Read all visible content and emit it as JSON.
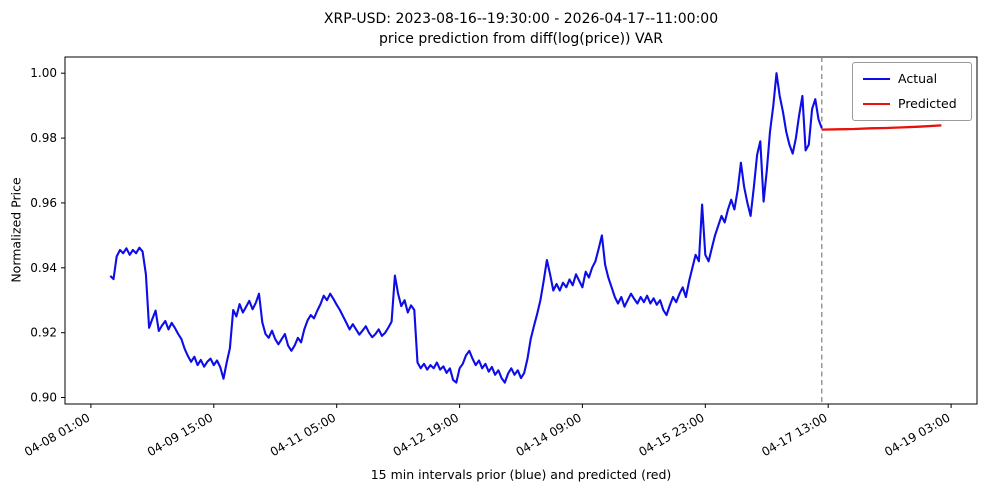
{
  "figure": {
    "title_line1": "XRP-USD: 2023-08-16--19:30:00 - 2026-04-17--11:00:00",
    "title_line2": "price prediction from diff(log(price)) VAR",
    "xlabel": "15 min intervals prior (blue) and predicted (red)",
    "ylabel": "Normalized Price"
  },
  "legend": {
    "items": [
      {
        "label": "Actual",
        "color": "#0d0dе8"
      },
      {
        "label": "Predicted",
        "color": "#e8110b"
      }
    ]
  },
  "colors": {
    "actual": "#0d0de8",
    "predicted": "#e8110b",
    "forecast_divider": "#808080",
    "axis": "#000000"
  },
  "chart_data": {
    "type": "line",
    "title": "XRP-USD: 2023-08-16--19:30:00 - 2026-04-17--11:00:00 / price prediction from diff(log(price)) VAR",
    "xlabel": "15 min intervals prior (blue) and predicted (red)",
    "ylabel": "Normalized Price",
    "grid": false,
    "legend_position": "upper right",
    "x_unit": "hours since 04-08 01:00",
    "xlim": [
      -8,
      274
    ],
    "ylim": [
      0.898,
      1.005
    ],
    "x_ticks": [
      {
        "hour": 0,
        "label": "04-08 01:00"
      },
      {
        "hour": 38,
        "label": "04-09 15:00"
      },
      {
        "hour": 76,
        "label": "04-11 05:00"
      },
      {
        "hour": 114,
        "label": "04-12 19:00"
      },
      {
        "hour": 152,
        "label": "04-14 09:00"
      },
      {
        "hour": 190,
        "label": "04-15 23:00"
      },
      {
        "hour": 228,
        "label": "04-17 13:00"
      },
      {
        "hour": 266,
        "label": "04-19 03:00"
      }
    ],
    "y_ticks": [
      {
        "value": 0.9,
        "label": "0.90"
      },
      {
        "value": 0.92,
        "label": "0.92"
      },
      {
        "value": 0.94,
        "label": "0.94"
      },
      {
        "value": 0.96,
        "label": "0.96"
      },
      {
        "value": 0.98,
        "label": "0.98"
      },
      {
        "value": 1.0,
        "label": "1.00"
      }
    ],
    "forecast_boundary_hour": 226,
    "series": [
      {
        "name": "Actual",
        "color": "#0d0de8",
        "start_hour": 6,
        "step_hours": 1,
        "values": [
          0.9375,
          0.9365,
          0.9435,
          0.9455,
          0.9445,
          0.946,
          0.944,
          0.9455,
          0.9445,
          0.9462,
          0.945,
          0.938,
          0.9215,
          0.9242,
          0.9268,
          0.9205,
          0.9222,
          0.9236,
          0.921,
          0.923,
          0.9214,
          0.9196,
          0.918,
          0.915,
          0.9128,
          0.911,
          0.9126,
          0.91,
          0.9116,
          0.9095,
          0.911,
          0.912,
          0.91,
          0.9114,
          0.9094,
          0.9058,
          0.9108,
          0.9152,
          0.927,
          0.925,
          0.9288,
          0.9262,
          0.928,
          0.9298,
          0.9272,
          0.9292,
          0.932,
          0.9232,
          0.9196,
          0.9184,
          0.9206,
          0.918,
          0.9164,
          0.918,
          0.9196,
          0.916,
          0.9144,
          0.916,
          0.9184,
          0.917,
          0.921,
          0.9238,
          0.9254,
          0.9244,
          0.9268,
          0.9288,
          0.9314,
          0.93,
          0.932,
          0.9304,
          0.9286,
          0.927,
          0.925,
          0.923,
          0.921,
          0.9226,
          0.921,
          0.9194,
          0.9206,
          0.922,
          0.92,
          0.9186,
          0.9196,
          0.921,
          0.919,
          0.92,
          0.9216,
          0.9234,
          0.9376,
          0.932,
          0.9282,
          0.93,
          0.9262,
          0.9284,
          0.927,
          0.9108,
          0.909,
          0.9104,
          0.9086,
          0.91,
          0.909,
          0.9108,
          0.9086,
          0.9096,
          0.9076,
          0.909,
          0.9054,
          0.9046,
          0.909,
          0.9104,
          0.913,
          0.9144,
          0.912,
          0.91,
          0.9114,
          0.909,
          0.9104,
          0.908,
          0.9094,
          0.907,
          0.9084,
          0.906,
          0.9046,
          0.9074,
          0.909,
          0.907,
          0.9084,
          0.906,
          0.9076,
          0.912,
          0.918,
          0.922,
          0.9258,
          0.93,
          0.9358,
          0.9424,
          0.938,
          0.933,
          0.935,
          0.933,
          0.9354,
          0.934,
          0.9364,
          0.9346,
          0.938,
          0.936,
          0.934,
          0.9388,
          0.937,
          0.94,
          0.942,
          0.9458,
          0.95,
          0.941,
          0.937,
          0.934,
          0.931,
          0.929,
          0.931,
          0.928,
          0.93,
          0.932,
          0.9304,
          0.929,
          0.931,
          0.9294,
          0.9314,
          0.929,
          0.9306,
          0.9286,
          0.93,
          0.927,
          0.9254,
          0.9284,
          0.931,
          0.9294,
          0.932,
          0.934,
          0.931,
          0.936,
          0.94,
          0.944,
          0.942,
          0.9595,
          0.944,
          0.942,
          0.946,
          0.95,
          0.953,
          0.956,
          0.954,
          0.958,
          0.961,
          0.958,
          0.964,
          0.9724,
          0.965,
          0.96,
          0.956,
          0.965,
          0.9748,
          0.979,
          0.9604,
          0.97,
          0.982,
          0.99,
          1.0,
          0.993,
          0.988,
          0.982,
          0.978,
          0.9752,
          0.98,
          0.987,
          0.993,
          0.9762,
          0.978,
          0.989,
          0.992,
          0.9858,
          0.983
        ]
      },
      {
        "name": "Predicted",
        "color": "#e8110b",
        "x": [
          226,
          231,
          236,
          241,
          246,
          251,
          256,
          263
        ],
        "values": [
          0.9826,
          0.9827,
          0.9828,
          0.983,
          0.9831,
          0.9833,
          0.9835,
          0.9839
        ]
      }
    ]
  }
}
